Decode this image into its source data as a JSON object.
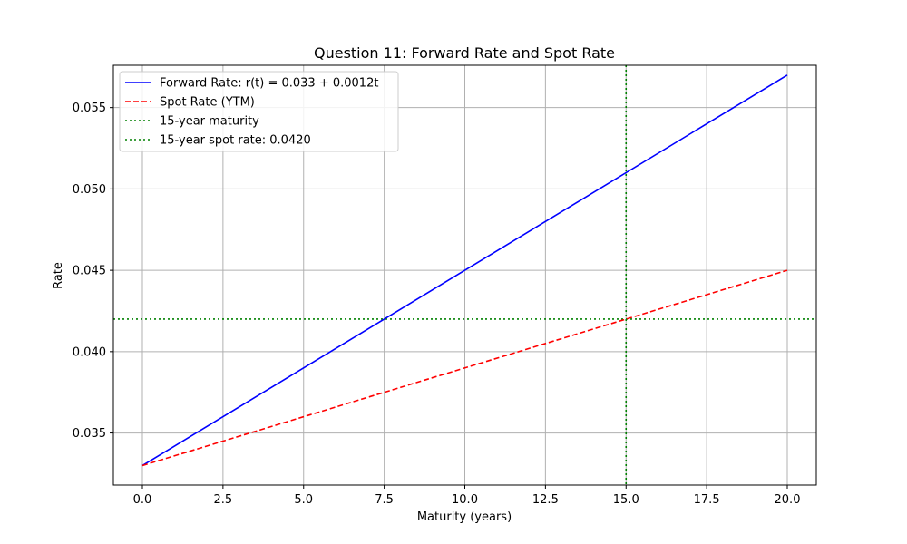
{
  "chart_data": {
    "type": "line",
    "title": "Question 11: Forward Rate and Spot Rate",
    "xlabel": "Maturity (years)",
    "ylabel": "Rate",
    "xlim": [
      -0.9,
      20.9
    ],
    "ylim": [
      0.0318,
      0.0576
    ],
    "xticks": [
      0.0,
      2.5,
      5.0,
      7.5,
      10.0,
      12.5,
      15.0,
      17.5,
      20.0
    ],
    "xtick_labels": [
      "0.0",
      "2.5",
      "5.0",
      "7.5",
      "10.0",
      "12.5",
      "15.0",
      "17.5",
      "20.0"
    ],
    "yticks": [
      0.035,
      0.04,
      0.045,
      0.05,
      0.055
    ],
    "ytick_labels": [
      "0.035",
      "0.040",
      "0.045",
      "0.050",
      "0.055"
    ],
    "grid": true,
    "legend_position": "top-left",
    "series": [
      {
        "name": "Forward Rate: r(t) = 0.033 + 0.0012t",
        "style": "solid",
        "color": "#0000ff",
        "x": [
          0,
          20
        ],
        "y": [
          0.033,
          0.057
        ]
      },
      {
        "name": "Spot Rate (YTM)",
        "style": "dashed",
        "color": "#ff0000",
        "x": [
          0,
          20
        ],
        "y": [
          0.033,
          0.045
        ]
      }
    ],
    "reference_lines": [
      {
        "name": "15-year maturity",
        "orientation": "vertical",
        "value": 15,
        "style": "dotted",
        "color": "#008000"
      },
      {
        "name": "15-year spot rate: 0.0420",
        "orientation": "horizontal",
        "value": 0.042,
        "style": "dotted",
        "color": "#008000"
      }
    ]
  }
}
